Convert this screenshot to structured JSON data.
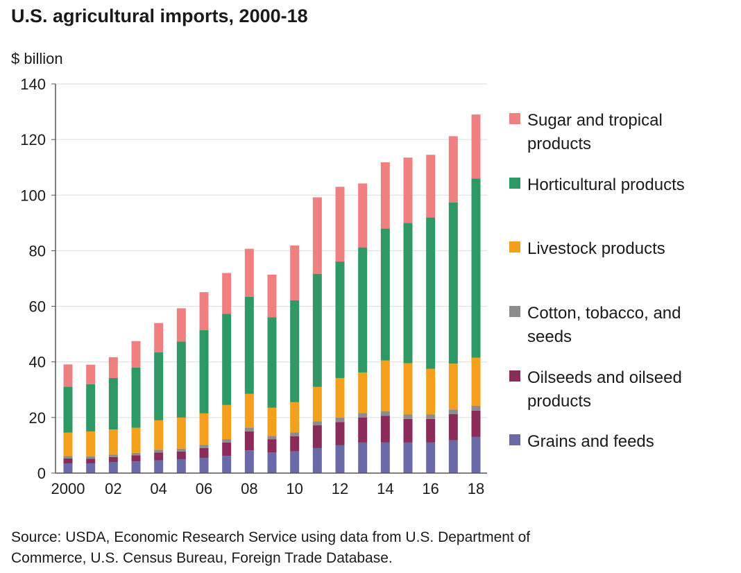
{
  "title": "U.S. agricultural imports, 2000-18",
  "unit_label": "$ billion",
  "source_lines": [
    "Source: USDA, Economic Research Service using data from U.S. Department of",
    "Commerce, U.S. Census Bureau, Foreign Trade Database."
  ],
  "chart_data": {
    "type": "bar",
    "stacked": true,
    "title": "U.S. agricultural imports, 2000-18",
    "ylabel": "$ billion",
    "ylim": [
      0,
      140
    ],
    "yticks": [
      0,
      20,
      40,
      60,
      80,
      100,
      120,
      140
    ],
    "grid": true,
    "legend_position": "right",
    "categories": [
      "2000",
      "2001",
      "2002",
      "2003",
      "2004",
      "2005",
      "2006",
      "2007",
      "2008",
      "2009",
      "2010",
      "2011",
      "2012",
      "2013",
      "2014",
      "2015",
      "2016",
      "2017",
      "2018"
    ],
    "x_tick_labels": [
      "2000",
      "",
      "02",
      "",
      "04",
      "",
      "06",
      "",
      "08",
      "",
      "10",
      "",
      "12",
      "",
      "14",
      "",
      "16",
      "",
      "18"
    ],
    "series": [
      {
        "name": "Grains and feeds",
        "color": "#6a6aa8",
        "values": [
          3.5,
          3.5,
          4,
          4.2,
          4.6,
          5,
          5.5,
          6.2,
          8.2,
          7.4,
          7.8,
          9,
          10,
          11,
          11,
          11,
          11,
          11.8,
          13
        ]
      },
      {
        "name": "Oilseeds and oilseed products",
        "color": "#8b2b5a",
        "values": [
          1.8,
          1.7,
          1.8,
          2.2,
          2.8,
          2.8,
          3.5,
          4.8,
          6.8,
          4.8,
          5.5,
          8.2,
          8.4,
          9,
          9.6,
          8.5,
          8.5,
          9.4,
          9.5
        ]
      },
      {
        "name": "Cotton, tobacco, and seeds",
        "color": "#8c8c8c",
        "values": [
          0.8,
          0.8,
          0.9,
          0.9,
          1,
          1,
          1.1,
          1.2,
          1.4,
          1.2,
          1.3,
          1.4,
          1.6,
          1.6,
          1.7,
          1.6,
          1.6,
          1.7,
          1.7
        ]
      },
      {
        "name": "Livestock products",
        "color": "#f5a01c",
        "values": [
          8.5,
          9,
          9,
          9,
          10.6,
          11.2,
          11.4,
          12.3,
          12.1,
          10.1,
          10.9,
          12.4,
          14.2,
          14.6,
          18.2,
          18.4,
          16.4,
          16.5,
          17.3
        ]
      },
      {
        "name": "Horticultural products",
        "color": "#2e9964",
        "values": [
          16.5,
          17,
          18.5,
          21.7,
          24.5,
          27.3,
          29.9,
          32.8,
          34.9,
          32.6,
          36.7,
          40.7,
          41.9,
          45,
          47.5,
          50.5,
          54.5,
          58,
          64.5
        ]
      },
      {
        "name": "Sugar and tropical products",
        "color": "#f08080",
        "values": [
          8,
          7,
          7.5,
          9.5,
          10.5,
          12,
          13.7,
          14.7,
          17.3,
          15.3,
          19.7,
          27.5,
          26.9,
          23,
          23.8,
          23.5,
          22.5,
          23.8,
          23
        ]
      }
    ]
  }
}
